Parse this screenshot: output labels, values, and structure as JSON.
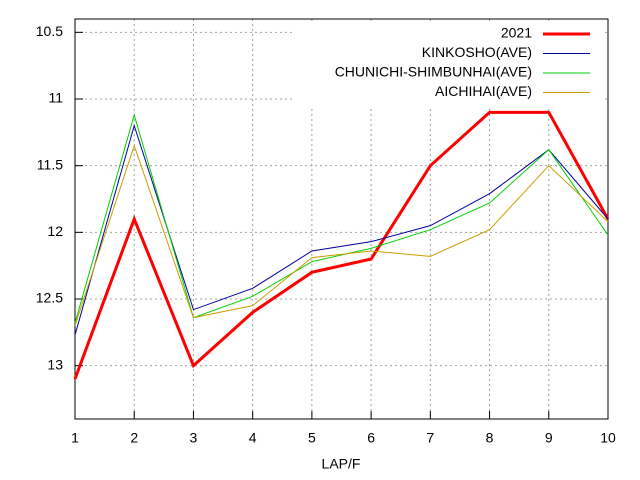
{
  "chart_data": {
    "type": "line",
    "x_label": "LAP/F",
    "x": [
      1,
      2,
      3,
      4,
      5,
      6,
      7,
      8,
      9,
      10
    ],
    "xlim": [
      1,
      10
    ],
    "xticks": [
      1,
      2,
      3,
      4,
      5,
      6,
      7,
      8,
      9,
      10
    ],
    "ylim": [
      13.4,
      10.4
    ],
    "yticks": [
      10.5,
      11,
      11.5,
      12,
      12.5,
      13
    ],
    "grid": true,
    "legend": "top-right",
    "series": [
      {
        "name": "2021",
        "color": "#ff0000",
        "values": [
          13.1,
          11.9,
          13.0,
          12.6,
          12.3,
          12.2,
          11.5,
          11.1,
          11.1,
          11.9
        ]
      },
      {
        "name": "KINKOSHO(AVE)",
        "color": "#0000a0",
        "values": [
          12.77,
          11.2,
          12.58,
          12.42,
          12.14,
          12.07,
          11.95,
          11.71,
          11.38,
          11.9
        ]
      },
      {
        "name": "CHUNICHI-SHIMBUNHAI(AVE)",
        "color": "#00d000",
        "values": [
          12.68,
          11.12,
          12.64,
          12.48,
          12.22,
          12.12,
          11.98,
          11.78,
          11.38,
          12.02
        ]
      },
      {
        "name": "AICHIHAI(AVE)",
        "color": "#c8a000",
        "values": [
          12.7,
          11.35,
          12.64,
          12.55,
          12.19,
          12.14,
          12.18,
          11.98,
          11.5,
          11.92
        ]
      }
    ]
  }
}
